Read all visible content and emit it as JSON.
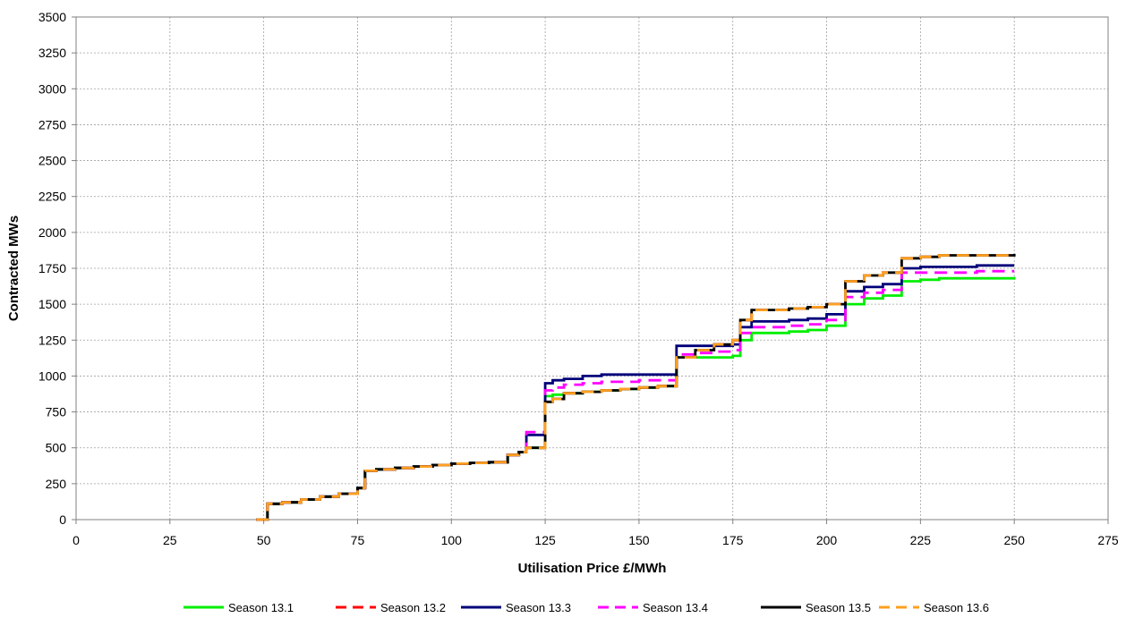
{
  "chart_data": {
    "type": "line",
    "step": true,
    "xlabel": "Utilisation Price £/MWh",
    "ylabel": "Contracted MWs",
    "xlim": [
      0,
      275
    ],
    "ylim": [
      0,
      3500
    ],
    "xticks": [
      0,
      25,
      50,
      75,
      100,
      125,
      150,
      175,
      200,
      225,
      250,
      275
    ],
    "yticks": [
      0,
      250,
      500,
      750,
      1000,
      1250,
      1500,
      1750,
      2000,
      2250,
      2500,
      2750,
      3000,
      3250,
      3500
    ],
    "grid": true,
    "legend": "bottom",
    "series": [
      {
        "name": "Season 13.1",
        "color": "#00ee00",
        "dash": "solid",
        "x": [
          48,
          51,
          55,
          60,
          65,
          70,
          75,
          77,
          80,
          85,
          90,
          95,
          100,
          105,
          110,
          115,
          118,
          120,
          125,
          127,
          130,
          135,
          140,
          145,
          150,
          155,
          160,
          165,
          170,
          175,
          177,
          180,
          185,
          190,
          195,
          200,
          205,
          210,
          215,
          220,
          225,
          230,
          240,
          250
        ],
        "y": [
          0,
          110,
          120,
          140,
          160,
          180,
          220,
          340,
          350,
          360,
          370,
          380,
          390,
          395,
          400,
          450,
          470,
          500,
          860,
          870,
          880,
          890,
          900,
          910,
          920,
          930,
          1130,
          1130,
          1130,
          1140,
          1250,
          1300,
          1300,
          1310,
          1320,
          1350,
          1500,
          1540,
          1560,
          1660,
          1670,
          1680,
          1680,
          1690
        ]
      },
      {
        "name": "Season 13.2",
        "color": "#ff0000",
        "dash": "dashed",
        "x": [
          48,
          51,
          55,
          60,
          65,
          70,
          75,
          77,
          80,
          85,
          90,
          95,
          100,
          105,
          110,
          115,
          118,
          120,
          125,
          127,
          130,
          135,
          140,
          145,
          150,
          155,
          160,
          165,
          170,
          175,
          177,
          180,
          185,
          190,
          195,
          200,
          205,
          210,
          215,
          220,
          225,
          230,
          240,
          250
        ],
        "y": [
          0,
          110,
          120,
          140,
          160,
          180,
          220,
          340,
          350,
          360,
          370,
          380,
          390,
          395,
          400,
          450,
          470,
          500,
          820,
          840,
          880,
          890,
          900,
          910,
          920,
          930,
          1130,
          1180,
          1220,
          1250,
          1390,
          1460,
          1460,
          1470,
          1480,
          1500,
          1660,
          1700,
          1720,
          1820,
          1830,
          1840,
          1840,
          1850
        ]
      },
      {
        "name": "Season 13.3",
        "color": "#00007a",
        "dash": "solid",
        "x": [
          48,
          51,
          55,
          60,
          65,
          70,
          75,
          77,
          80,
          85,
          90,
          95,
          100,
          105,
          110,
          115,
          118,
          120,
          125,
          127,
          130,
          135,
          140,
          145,
          150,
          155,
          160,
          165,
          170,
          175,
          177,
          180,
          185,
          190,
          195,
          200,
          205,
          210,
          215,
          220,
          225,
          230,
          240,
          250
        ],
        "y": [
          0,
          110,
          120,
          140,
          160,
          180,
          220,
          340,
          350,
          360,
          370,
          380,
          390,
          395,
          400,
          450,
          470,
          590,
          950,
          970,
          980,
          1000,
          1010,
          1010,
          1010,
          1010,
          1210,
          1210,
          1210,
          1220,
          1340,
          1380,
          1380,
          1390,
          1400,
          1430,
          1590,
          1620,
          1640,
          1750,
          1760,
          1760,
          1770,
          1770
        ]
      },
      {
        "name": "Season 13.4",
        "color": "#ff00ff",
        "dash": "dashed",
        "x": [
          48,
          51,
          55,
          60,
          65,
          70,
          75,
          77,
          80,
          85,
          90,
          95,
          100,
          105,
          110,
          115,
          118,
          120,
          125,
          127,
          130,
          135,
          140,
          145,
          150,
          155,
          160,
          165,
          170,
          175,
          177,
          180,
          185,
          190,
          195,
          200,
          205,
          210,
          215,
          220,
          225,
          230,
          240,
          250
        ],
        "y": [
          0,
          110,
          120,
          140,
          160,
          180,
          220,
          340,
          350,
          360,
          370,
          380,
          390,
          395,
          400,
          450,
          470,
          610,
          900,
          920,
          940,
          950,
          960,
          960,
          970,
          970,
          1150,
          1160,
          1170,
          1180,
          1300,
          1340,
          1340,
          1350,
          1360,
          1390,
          1550,
          1580,
          1600,
          1720,
          1720,
          1720,
          1730,
          1730
        ]
      },
      {
        "name": "Season 13.5",
        "color": "#000000",
        "dash": "solid",
        "x": [
          48,
          51,
          55,
          60,
          65,
          70,
          75,
          77,
          80,
          85,
          90,
          95,
          100,
          105,
          110,
          115,
          118,
          120,
          125,
          127,
          130,
          135,
          140,
          145,
          150,
          155,
          160,
          165,
          170,
          175,
          177,
          180,
          185,
          190,
          195,
          200,
          205,
          210,
          215,
          220,
          225,
          230,
          240,
          250
        ],
        "y": [
          0,
          110,
          120,
          140,
          160,
          180,
          220,
          340,
          350,
          360,
          370,
          380,
          390,
          395,
          400,
          450,
          470,
          500,
          820,
          840,
          880,
          890,
          900,
          910,
          920,
          930,
          1130,
          1180,
          1220,
          1250,
          1390,
          1460,
          1460,
          1470,
          1480,
          1500,
          1660,
          1700,
          1720,
          1820,
          1830,
          1840,
          1840,
          1850
        ]
      },
      {
        "name": "Season 13.6",
        "color": "#ffa020",
        "dash": "dashed",
        "x": [
          48,
          51,
          55,
          60,
          65,
          70,
          75,
          77,
          80,
          85,
          90,
          95,
          100,
          105,
          110,
          115,
          118,
          120,
          125,
          127,
          130,
          135,
          140,
          145,
          150,
          155,
          160,
          165,
          170,
          175,
          177,
          180,
          185,
          190,
          195,
          200,
          205,
          210,
          215,
          220,
          225,
          230,
          240,
          250
        ],
        "y": [
          0,
          110,
          120,
          140,
          160,
          180,
          220,
          340,
          350,
          360,
          370,
          380,
          390,
          395,
          400,
          450,
          470,
          500,
          820,
          840,
          880,
          890,
          900,
          910,
          920,
          930,
          1130,
          1180,
          1220,
          1250,
          1390,
          1460,
          1460,
          1470,
          1480,
          1500,
          1660,
          1700,
          1720,
          1820,
          1830,
          1840,
          1840,
          1850
        ]
      }
    ]
  }
}
